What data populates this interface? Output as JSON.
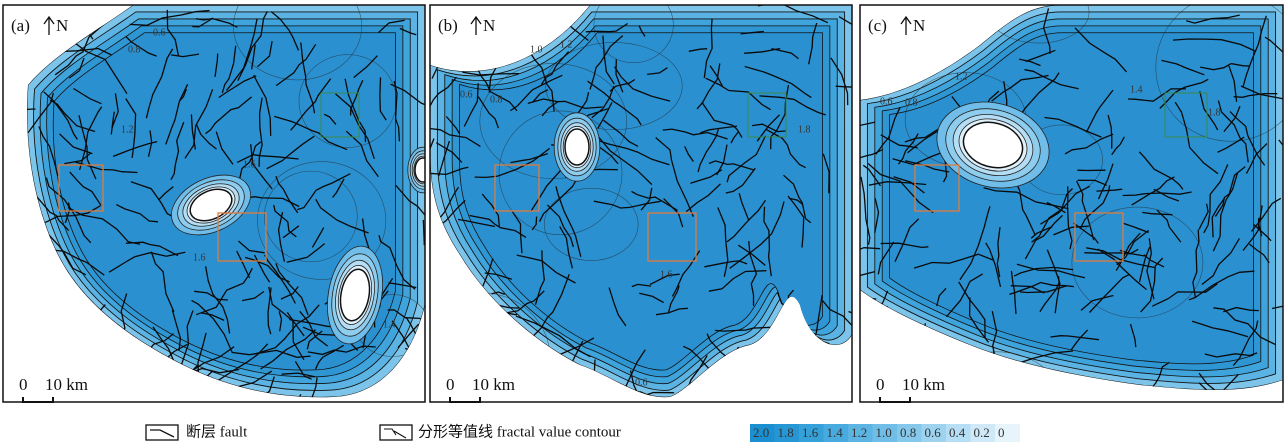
{
  "panels": [
    {
      "label": "(a)",
      "north": "N",
      "scale": {
        "zero": "0",
        "length": "10 km"
      },
      "contour_labels": [
        "0.6",
        "0.8",
        "1.2",
        "1.6",
        "1.6",
        "1.4"
      ]
    },
    {
      "label": "(b)",
      "north": "N",
      "scale": {
        "zero": "0",
        "length": "10 km"
      },
      "contour_labels": [
        "0.6",
        "0.8",
        "1.0",
        "1.2",
        "1.6",
        "1.8",
        "0.6"
      ]
    },
    {
      "label": "(c)",
      "north": "N",
      "scale": {
        "zero": "0",
        "length": "10 km"
      },
      "contour_labels": [
        "0.6",
        "0.8",
        "1.2",
        "1.4",
        "1.8"
      ]
    }
  ],
  "legend": {
    "fault": "断层 fault",
    "contour": "分形等值线 fractal value contour",
    "colorbar": [
      "2.0",
      "1.8",
      "1.6",
      "1.4",
      "1.2",
      "1.0",
      "0.8",
      "0.6",
      "0.4",
      "0.2",
      "0"
    ]
  }
}
